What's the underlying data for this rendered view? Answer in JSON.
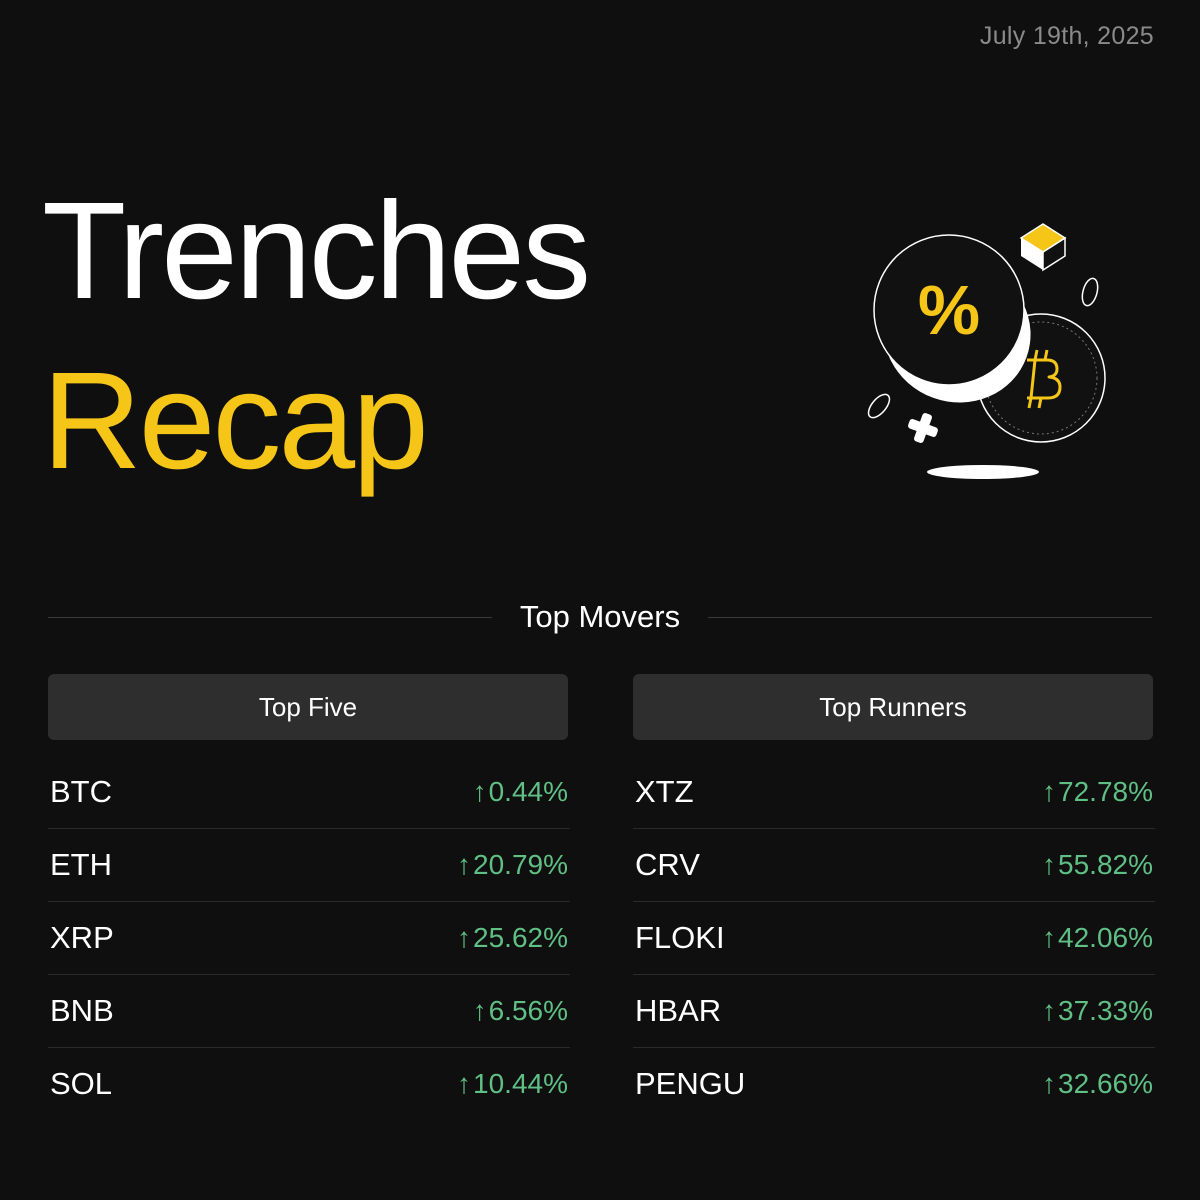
{
  "date": "July 19th, 2025",
  "title": "Trenches",
  "subtitle": "Recap",
  "colors": {
    "accent": "#f5c518",
    "positive": "#5fbf85",
    "background": "#0f0f0f"
  },
  "illustration": {
    "icons": [
      "percent-coin-icon",
      "bitcoin-coin-icon",
      "cube-icon",
      "cross-icon"
    ],
    "percent_symbol": "%"
  },
  "section": {
    "title": "Top Movers"
  },
  "top_five": {
    "label": "Top Five",
    "rows": [
      {
        "symbol": "BTC",
        "change": "0.44%"
      },
      {
        "symbol": "ETH",
        "change": "20.79%"
      },
      {
        "symbol": "XRP",
        "change": "25.62%"
      },
      {
        "symbol": "BNB",
        "change": "6.56%"
      },
      {
        "symbol": "SOL",
        "change": "10.44%"
      }
    ]
  },
  "top_runners": {
    "label": "Top Runners",
    "rows": [
      {
        "symbol": "XTZ",
        "change": "72.78%"
      },
      {
        "symbol": "CRV",
        "change": "55.82%"
      },
      {
        "symbol": "FLOKI",
        "change": "42.06%"
      },
      {
        "symbol": "HBAR",
        "change": "37.33%"
      },
      {
        "symbol": "PENGU",
        "change": "32.66%"
      }
    ]
  }
}
